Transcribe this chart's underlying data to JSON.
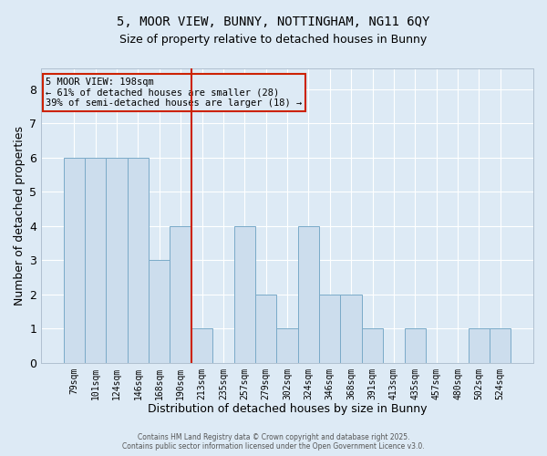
{
  "title": "5, MOOR VIEW, BUNNY, NOTTINGHAM, NG11 6QY",
  "subtitle": "Size of property relative to detached houses in Bunny",
  "xlabel": "Distribution of detached houses by size in Bunny",
  "ylabel": "Number of detached properties",
  "footer": "Contains HM Land Registry data © Crown copyright and database right 2025.\nContains public sector information licensed under the Open Government Licence v3.0.",
  "categories": [
    "79sqm",
    "101sqm",
    "124sqm",
    "146sqm",
    "168sqm",
    "190sqm",
    "213sqm",
    "235sqm",
    "257sqm",
    "279sqm",
    "302sqm",
    "324sqm",
    "346sqm",
    "368sqm",
    "391sqm",
    "413sqm",
    "435sqm",
    "457sqm",
    "480sqm",
    "502sqm",
    "524sqm"
  ],
  "values": [
    6,
    6,
    6,
    6,
    3,
    4,
    1,
    0,
    4,
    2,
    1,
    4,
    2,
    2,
    1,
    0,
    1,
    0,
    0,
    1,
    1
  ],
  "bar_color": "#ccdded",
  "bar_edge_color": "#7aaac8",
  "background_color": "#ddeaf5",
  "grid_color": "#ffffff",
  "ref_line_color": "#cc2200",
  "ref_line_index": 5.5,
  "annotation_text": "5 MOOR VIEW: 198sqm\n← 61% of detached houses are smaller (28)\n39% of semi-detached houses are larger (18) →",
  "annotation_box_color": "#cc2200",
  "ylim": [
    0,
    8.6
  ],
  "yticks": [
    0,
    1,
    2,
    3,
    4,
    5,
    6,
    7,
    8
  ],
  "title_fontsize": 10,
  "subtitle_fontsize": 9
}
